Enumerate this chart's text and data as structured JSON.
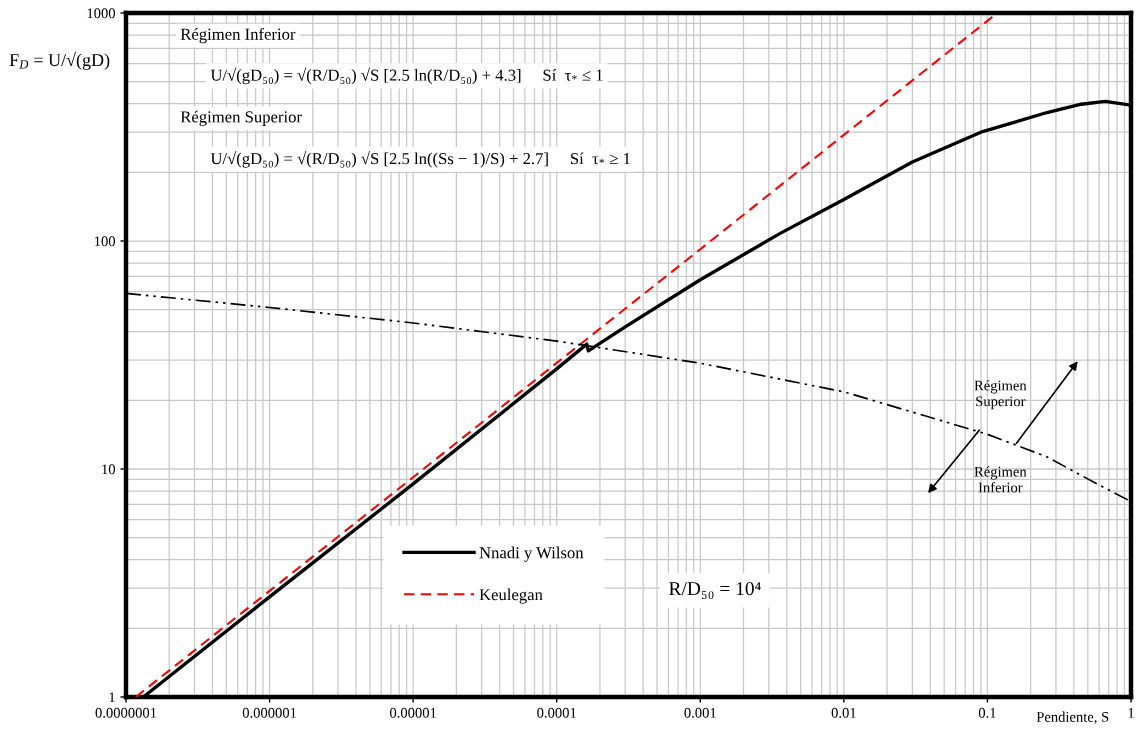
{
  "chart_data": {
    "type": "line",
    "xlabel": "Pendiente, S",
    "ylabel": "F$_{D}$ = U/√(gD)",
    "xlim": [
      1e-07,
      1
    ],
    "ylim": [
      1,
      1000
    ],
    "xticks": [
      {
        "value": 1e-07,
        "label": "0.0000001"
      },
      {
        "value": 1e-06,
        "label": "0.000001"
      },
      {
        "value": 1e-05,
        "label": "0.00001"
      },
      0.0001,
      0.001,
      0.01,
      0.1,
      1
    ],
    "yticks": [
      1,
      10,
      100,
      1000
    ],
    "log": "xy",
    "grid": true,
    "legend": "bottom",
    "series": [
      {
        "name": "Nnadi y Wilson",
        "color": "#000000",
        "line_style": "solid",
        "x": [
          1.32e-07,
          1e-06,
          1e-05,
          0.0001,
          0.000162,
          0.000166,
          0.0003,
          0.001,
          0.0036,
          0.01,
          0.03,
          0.09,
          0.26,
          0.45,
          0.66,
          1
        ],
        "values": [
          1.0,
          2.75,
          8.6,
          27.5,
          35.3,
          33.0,
          42,
          67.6,
          108,
          152,
          222,
          300,
          366,
          398,
          410,
          394
        ]
      },
      {
        "name": "Keulegan",
        "color": "#ff0000",
        "line_style": "dashed",
        "x": [
          1.17e-07,
          1e-06,
          1e-05,
          0.0001,
          0.001,
          0.01,
          0.117
        ],
        "values": [
          1.0,
          2.92,
          9.2,
          29.2,
          92,
          292,
          1000
        ]
      },
      {
        "color": "#000000",
        "line_style": "dashdot",
        "x": [
          1e-07,
          1e-06,
          1e-05,
          0.0001,
          0.001,
          0.01,
          0.1,
          0.26,
          0.58,
          1
        ],
        "values": [
          58.9,
          51.1,
          43.7,
          36.4,
          29.1,
          21.8,
          14.2,
          11.3,
          8.6,
          7.2
        ]
      }
    ],
    "annotations": [
      "Régimen Inferior",
      "U/√(gD₅₀) = √(R/D₅₀) √S [2.5 ln(R/D₅₀) + 4.3]     Sí  τ$_{*}$ ≤ 1",
      "Régimen Superior",
      "U/√(gD₅₀) = √(R/D₅₀) √S [2.5 ln((Ss − 1)/S) + 2.7]     Sí  τ$_{*}$ ≥ 1",
      "R/D₅₀ = 10⁴",
      "Régimen\nSuperior",
      "Régimen\nInferior"
    ]
  }
}
